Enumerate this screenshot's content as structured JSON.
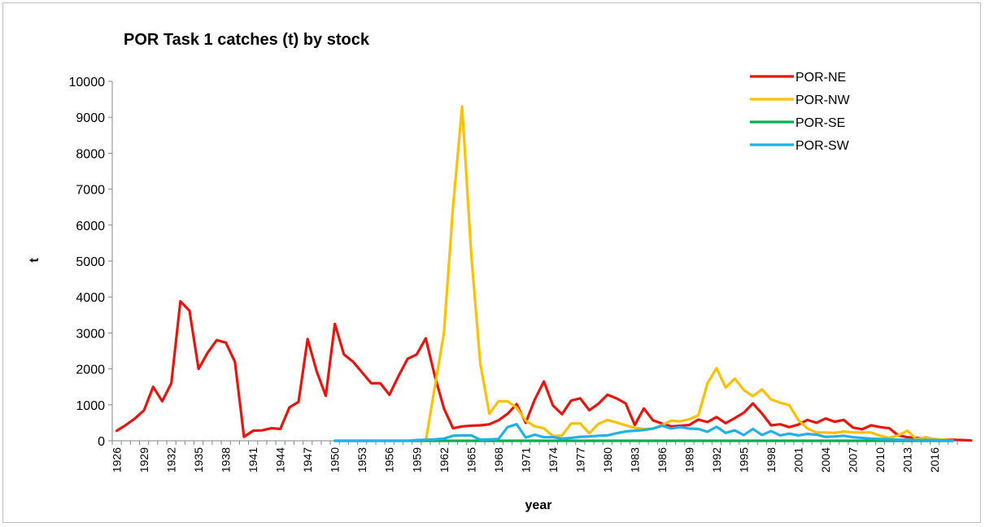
{
  "chart_data": {
    "type": "line",
    "title": "POR Task 1 catches (t) by stock",
    "xlabel": "year",
    "ylabel": "t",
    "ylim": [
      0,
      10000
    ],
    "yticks": [
      0,
      1000,
      2000,
      3000,
      4000,
      5000,
      6000,
      7000,
      8000,
      9000,
      10000
    ],
    "x_start": 1926,
    "x_end": 2018,
    "xticks": [
      1926,
      1929,
      1932,
      1935,
      1938,
      1941,
      1944,
      1947,
      1950,
      1953,
      1956,
      1959,
      1962,
      1965,
      1968,
      1971,
      1974,
      1977,
      1980,
      1983,
      1986,
      1989,
      1992,
      1995,
      1998,
      2001,
      2004,
      2007,
      2010,
      2013,
      2016
    ],
    "grid": false,
    "legend_position": "top-right",
    "series": [
      {
        "name": "POR-NE",
        "color": "#e8150f",
        "start_year": 1926,
        "values": [
          280,
          440,
          620,
          850,
          1500,
          1100,
          1600,
          3880,
          3620,
          2000,
          2450,
          2800,
          2730,
          2200,
          110,
          280,
          290,
          350,
          330,
          930,
          1080,
          2830,
          1930,
          1250,
          3250,
          2400,
          2200,
          1900,
          1600,
          1600,
          1280,
          1800,
          2280,
          2400,
          2850,
          1800,
          900,
          350,
          400,
          420,
          430,
          460,
          570,
          750,
          1020,
          500,
          1150,
          1650,
          980,
          740,
          1120,
          1180,
          850,
          1030,
          1280,
          1180,
          1040,
          440,
          900,
          570,
          480,
          400,
          420,
          440,
          590,
          520,
          660,
          490,
          630,
          780,
          1040,
          760,
          430,
          460,
          380,
          450,
          580,
          500,
          620,
          530,
          580,
          370,
          320,
          430,
          380,
          350,
          150,
          100,
          80,
          60,
          40,
          30,
          30,
          20,
          10
        ]
      },
      {
        "name": "POR-NW",
        "color": "#ffc000",
        "start_year": 1960,
        "values": [
          0,
          1500,
          3000,
          6500,
          9300,
          5200,
          2150,
          750,
          1100,
          1100,
          920,
          560,
          400,
          350,
          130,
          150,
          480,
          480,
          210,
          470,
          580,
          510,
          430,
          360,
          330,
          330,
          440,
          560,
          540,
          600,
          710,
          1600,
          2020,
          1480,
          1730,
          1410,
          1240,
          1430,
          1150,
          1060,
          990,
          580,
          340,
          230,
          230,
          220,
          260,
          230,
          230,
          230,
          140,
          80,
          150,
          280,
          40,
          100,
          40,
          30,
          10
        ]
      },
      {
        "name": "POR-SE",
        "color": "#00b050",
        "start_year": 1950,
        "values": [
          0,
          0,
          0,
          0,
          0,
          0,
          0,
          0,
          0,
          0,
          0,
          0,
          0,
          0,
          0,
          0,
          0,
          0,
          0,
          0,
          0,
          0,
          0,
          0,
          0,
          0,
          0,
          0,
          0,
          0,
          0,
          0,
          0,
          0,
          0,
          0,
          0,
          0,
          0,
          0,
          0,
          0,
          0,
          0,
          0,
          0,
          0,
          0,
          0,
          0,
          0,
          0,
          0,
          0,
          0,
          0,
          0,
          0,
          0,
          0,
          0,
          0,
          0,
          0,
          0,
          0,
          0,
          0,
          0
        ]
      },
      {
        "name": "POR-SW",
        "color": "#1fb2e6",
        "start_year": 1950,
        "values": [
          0,
          0,
          0,
          0,
          0,
          0,
          0,
          0,
          0,
          20,
          30,
          40,
          60,
          140,
          150,
          150,
          30,
          40,
          50,
          380,
          460,
          90,
          170,
          100,
          100,
          60,
          80,
          110,
          120,
          140,
          150,
          210,
          260,
          280,
          300,
          340,
          420,
          340,
          380,
          340,
          330,
          250,
          390,
          220,
          290,
          160,
          330,
          160,
          270,
          150,
          200,
          150,
          190,
          170,
          110,
          120,
          140,
          100,
          80,
          60,
          50,
          40,
          30,
          30,
          20,
          20,
          20,
          10,
          10
        ]
      }
    ]
  }
}
